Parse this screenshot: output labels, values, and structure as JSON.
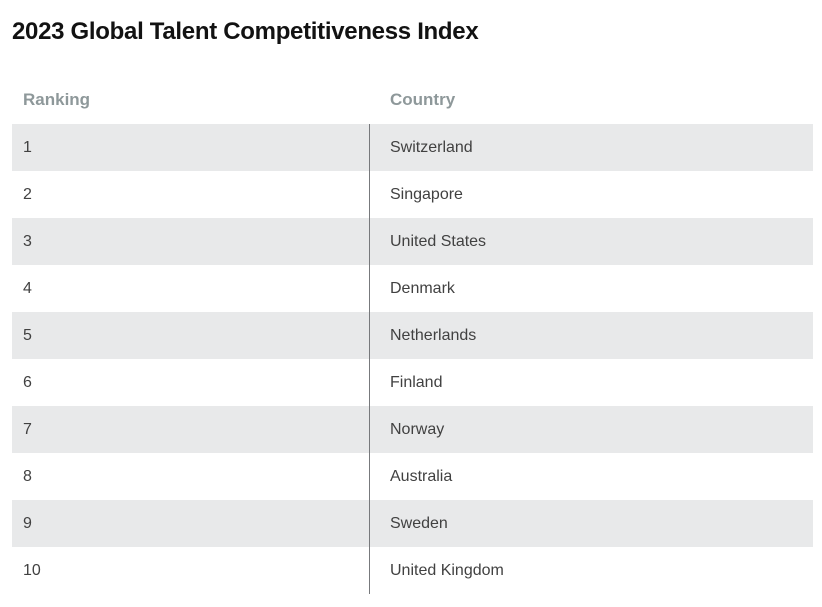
{
  "header": {
    "title": "2023 Global Talent Competitiveness Index"
  },
  "table": {
    "columns": [
      {
        "key": "ranking",
        "label": "Ranking"
      },
      {
        "key": "country",
        "label": "Country"
      }
    ],
    "rows": [
      {
        "ranking": "1",
        "country": "Switzerland"
      },
      {
        "ranking": "2",
        "country": "Singapore"
      },
      {
        "ranking": "3",
        "country": "United States"
      },
      {
        "ranking": "4",
        "country": "Denmark"
      },
      {
        "ranking": "5",
        "country": "Netherlands"
      },
      {
        "ranking": "6",
        "country": "Finland"
      },
      {
        "ranking": "7",
        "country": "Norway"
      },
      {
        "ranking": "8",
        "country": "Australia"
      },
      {
        "ranking": "9",
        "country": "Sweden"
      },
      {
        "ranking": "10",
        "country": "United Kingdom"
      }
    ],
    "style": {
      "page_background": "#ffffff",
      "title_color": "#121212",
      "header_text_color": "#8e989a",
      "cell_text_color": "#414141",
      "stripe_color": "#e8e9ea",
      "divider_color": "#77797c"
    }
  },
  "chart_data": {
    "type": "table",
    "title": "2023 Global Talent Competitiveness Index",
    "columns": [
      "Ranking",
      "Country"
    ],
    "rows": [
      [
        1,
        "Switzerland"
      ],
      [
        2,
        "Singapore"
      ],
      [
        3,
        "United States"
      ],
      [
        4,
        "Denmark"
      ],
      [
        5,
        "Netherlands"
      ],
      [
        6,
        "Finland"
      ],
      [
        7,
        "Norway"
      ],
      [
        8,
        "Australia"
      ],
      [
        9,
        "Sweden"
      ],
      [
        10,
        "United Kingdom"
      ]
    ],
    "layout": {
      "striped_rows": true,
      "stripe_on": "odd",
      "column_divider": true,
      "grid": false,
      "legend": false
    }
  }
}
